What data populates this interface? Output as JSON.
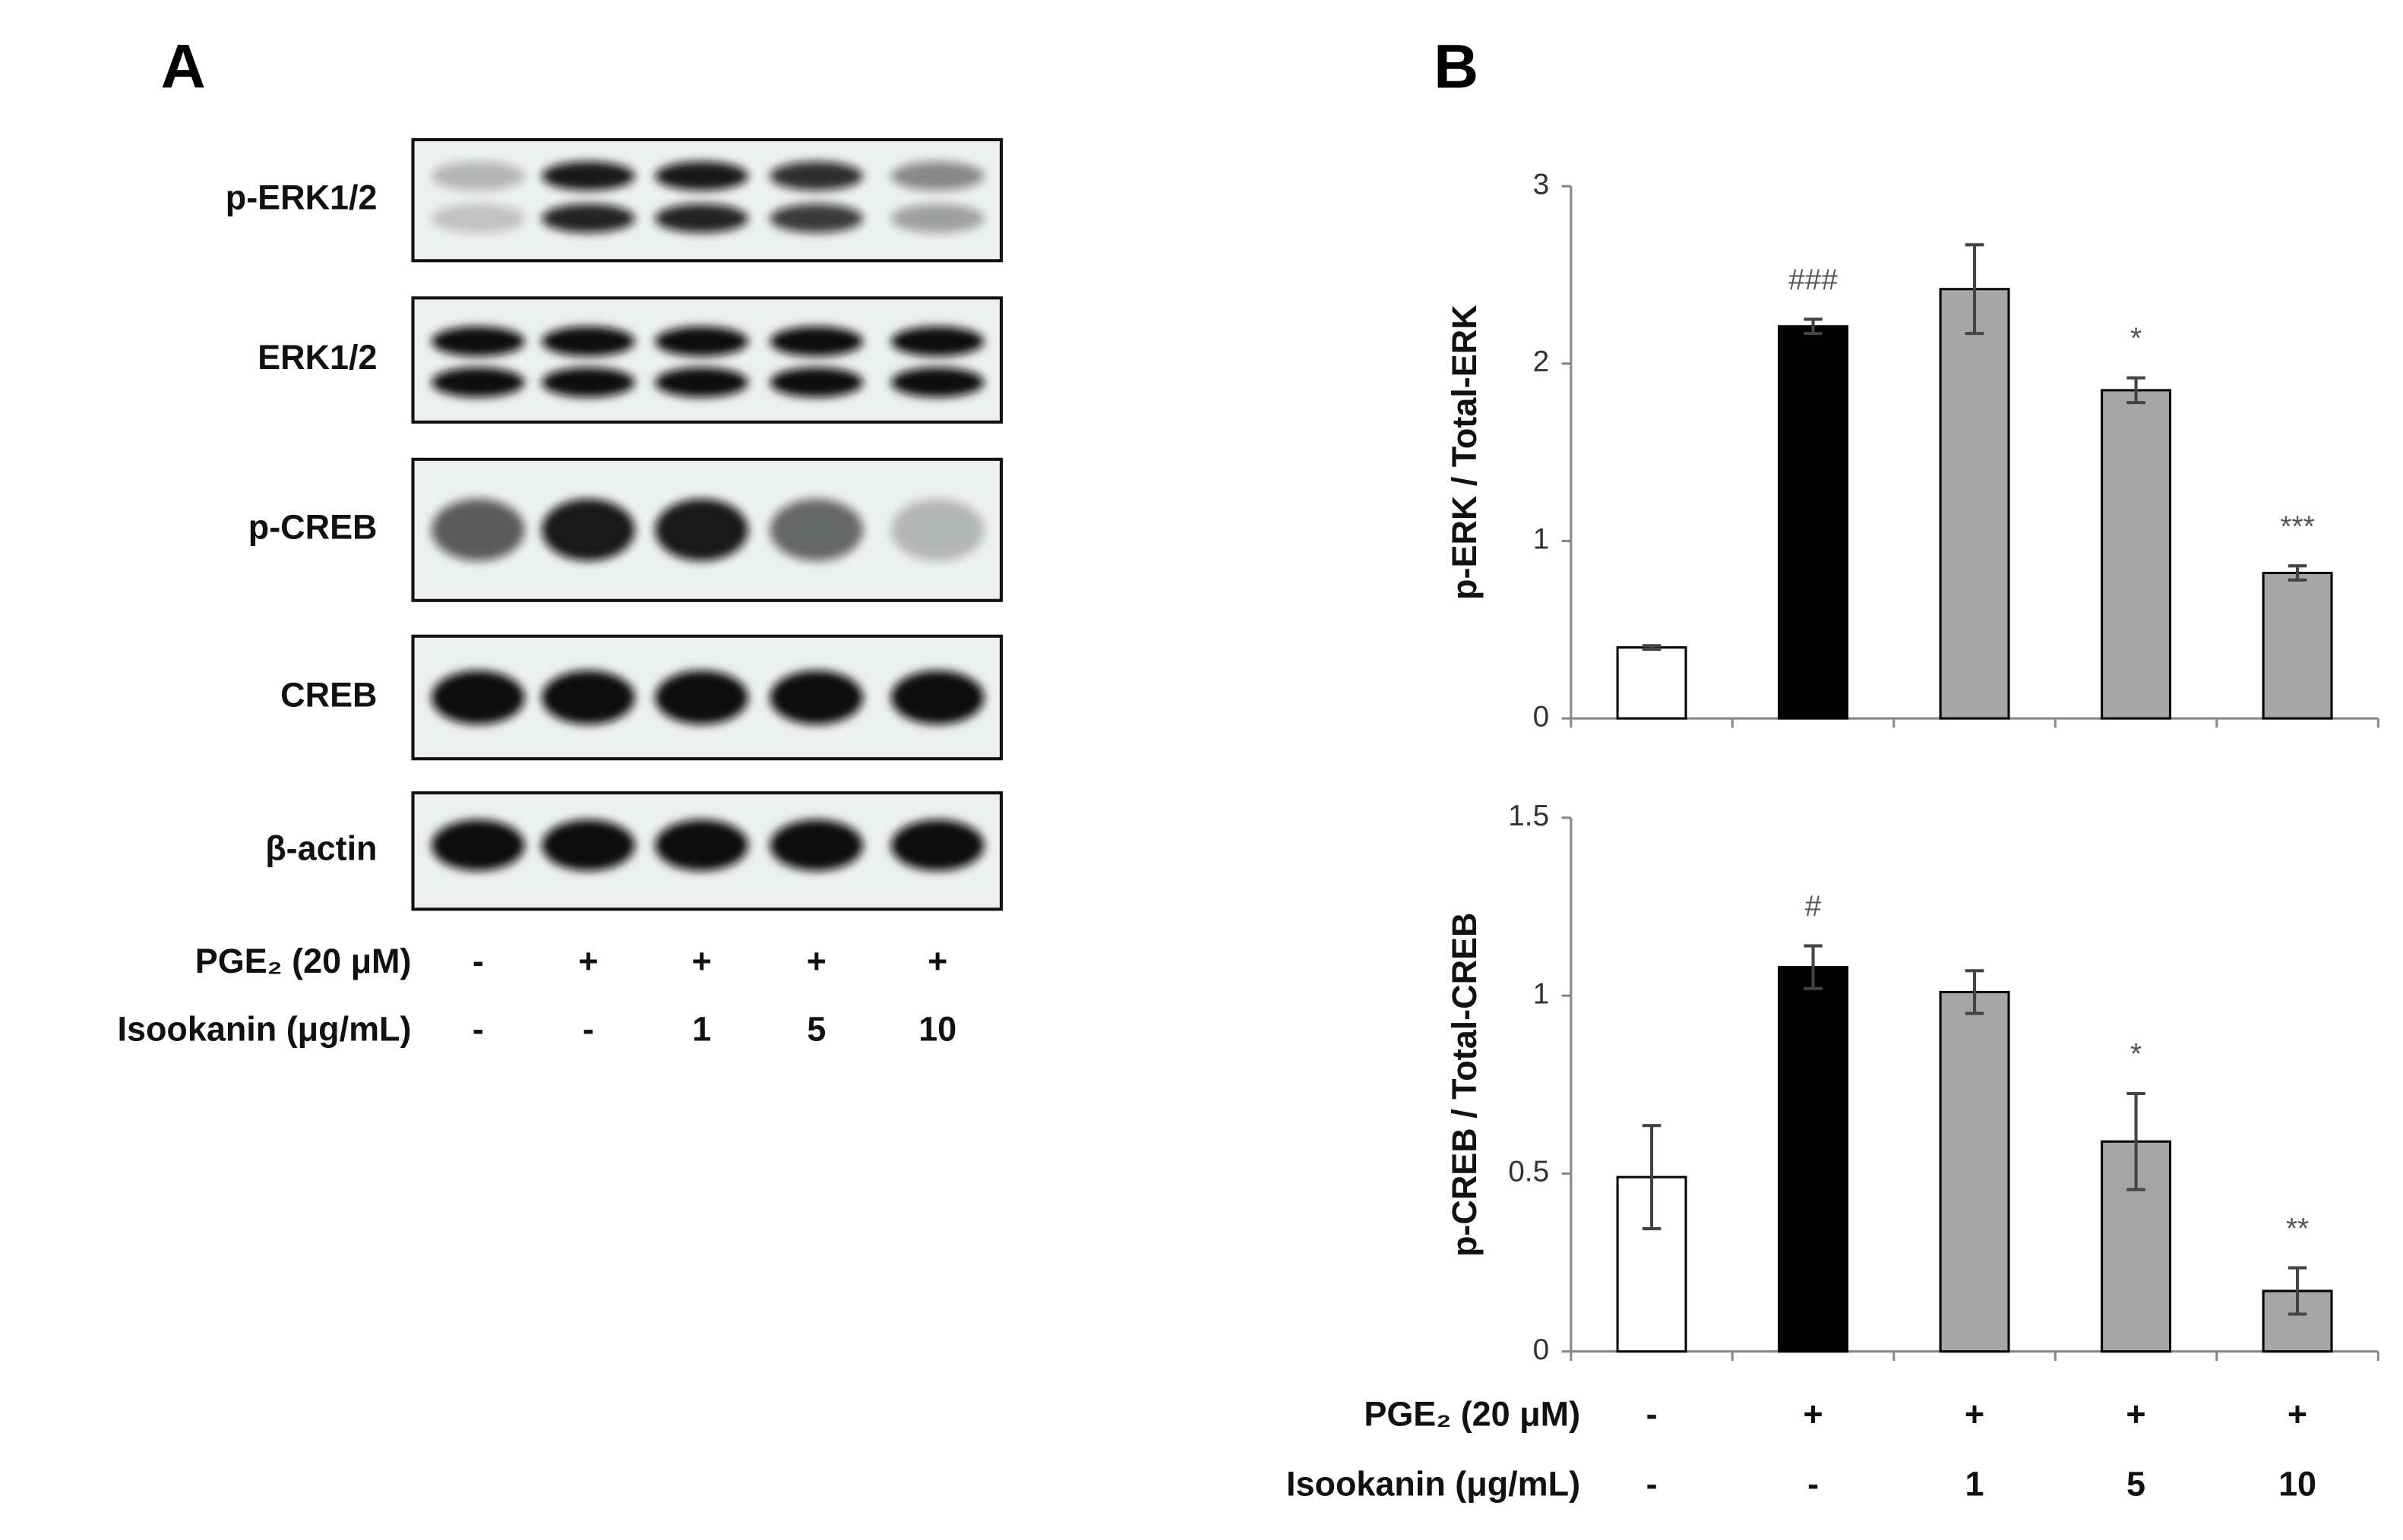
{
  "panel_a": {
    "label": "A",
    "blots": [
      "p-ERK1/2",
      "ERK1/2",
      "p-CREB",
      "CREB",
      "β-actin"
    ],
    "conditions": [
      {
        "label": "PGE₂ (20 μM)",
        "values": [
          "-",
          "+",
          "+",
          "+",
          "+"
        ]
      },
      {
        "label": "Isookanin (μg/mL)",
        "values": [
          "-",
          "-",
          "1",
          "5",
          "10"
        ]
      }
    ]
  },
  "chart_data": [
    {
      "type": "bar",
      "panel_label": "B",
      "y_label": "p-ERK / Total-ERK",
      "values": [
        0.4,
        2.21,
        2.42,
        1.85,
        0.82
      ],
      "errors": [
        0.01,
        0.04,
        0.25,
        0.07,
        0.04
      ],
      "annotations": [
        null,
        "###",
        null,
        "*",
        "***"
      ],
      "colors": [
        "#ffffff",
        "#000000",
        "#a6a6a6",
        "#a6a6a6",
        "#a6a6a6"
      ],
      "ylim": [
        0,
        3
      ],
      "yticks": [
        0,
        1,
        2,
        3
      ]
    },
    {
      "type": "bar",
      "y_label": "p-CREB / Total-CREB",
      "values": [
        0.49,
        1.08,
        1.01,
        0.59,
        0.17
      ],
      "errors": [
        0.145,
        0.06,
        0.06,
        0.135,
        0.065
      ],
      "annotations": [
        null,
        "#",
        null,
        "*",
        "**"
      ],
      "colors": [
        "#ffffff",
        "#000000",
        "#a6a6a6",
        "#a6a6a6",
        "#a6a6a6"
      ],
      "ylim": [
        0,
        1.5
      ],
      "yticks": [
        0,
        0.5,
        1,
        1.5
      ],
      "conditions": [
        {
          "label": "PGE₂ (20 μM)",
          "values": [
            "-",
            "+",
            "+",
            "+",
            "+"
          ]
        },
        {
          "label": "Isookanin (μg/mL)",
          "values": [
            "-",
            "-",
            "1",
            "5",
            "10"
          ]
        }
      ]
    }
  ]
}
